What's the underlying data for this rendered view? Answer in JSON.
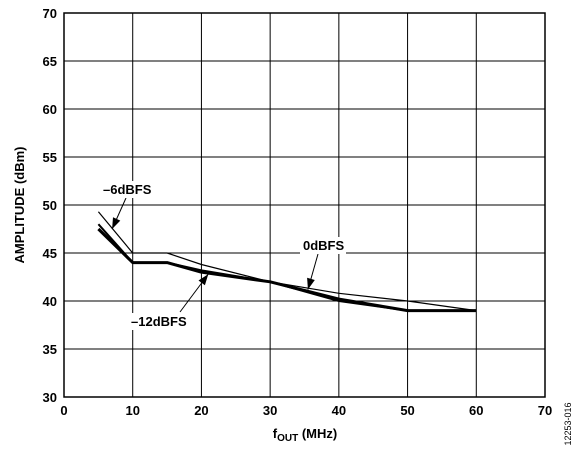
{
  "chart_data": {
    "type": "line",
    "xlabel": {
      "main": "f",
      "sub": "OUT",
      "rest": " (MHz)"
    },
    "ylabel": "AMPLITUDE (dBm)",
    "xlim": [
      0,
      70
    ],
    "ylim": [
      30,
      70
    ],
    "xticks": [
      "0",
      "10",
      "20",
      "30",
      "40",
      "50",
      "60",
      "70"
    ],
    "yticks": [
      "30",
      "35",
      "40",
      "45",
      "50",
      "55",
      "60",
      "65",
      "70"
    ],
    "grid": true,
    "series": [
      {
        "name": "0dBFS",
        "x": [
          5,
          10,
          15,
          20,
          30,
          40,
          50,
          60
        ],
        "y": [
          47.5,
          44.0,
          44.0,
          43.0,
          42.0,
          40.2,
          39.0,
          39.0
        ],
        "weight": "thick"
      },
      {
        "name": "–6dBFS",
        "x": [
          5,
          10,
          15,
          20,
          30,
          40,
          50,
          60
        ],
        "y": [
          49.3,
          45.0,
          45.0,
          43.8,
          42.0,
          40.8,
          40.0,
          39.0
        ],
        "weight": "thin"
      },
      {
        "name": "–12dBFS",
        "x": [
          5,
          10,
          15,
          20,
          30,
          40,
          50,
          60
        ],
        "y": [
          48.0,
          44.0,
          44.0,
          43.2,
          42.0,
          40.0,
          39.0,
          39.0
        ],
        "weight": "medium"
      }
    ],
    "annotations": [
      {
        "text": "–6dBFS",
        "series": "–6dBFS",
        "point_x": 7.0,
        "point_y": 47.5
      },
      {
        "text": "0dBFS",
        "series": "0dBFS",
        "point_x": 35.5,
        "point_y": 41.2
      },
      {
        "text": "–12dBFS",
        "series": "–12dBFS",
        "point_x": 21.0,
        "point_y": 42.8
      }
    ],
    "figure_id": "12253-016"
  }
}
